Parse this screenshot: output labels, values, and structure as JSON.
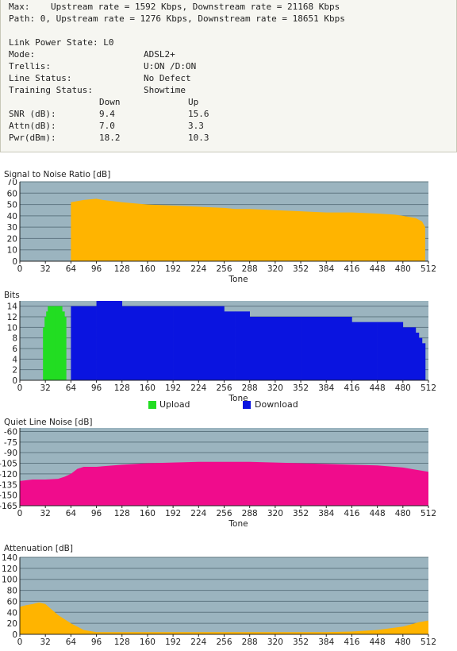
{
  "stats": {
    "max_line": "Max:    Upstream rate = 1592 Kbps, Downstream rate = 21168 Kbps",
    "path_line": "Path: 0, Upstream rate = 1276 Kbps, Downstream rate = 18651 Kbps",
    "link_power_state": "Link Power State: L0",
    "rows": [
      {
        "label": "Mode:",
        "value": "ADSL2+"
      },
      {
        "label": "Trellis:",
        "value": "U:ON /D:ON"
      },
      {
        "label": "Line Status:",
        "value": "No Defect"
      },
      {
        "label": "Training Status:",
        "value": "Showtime"
      }
    ],
    "col_down": "Down",
    "col_up": "Up",
    "metrics": [
      {
        "label": "SNR (dB):",
        "down": "9.4",
        "up": "15.6"
      },
      {
        "label": "Attn(dB):",
        "down": "7.0",
        "up": "3.3"
      },
      {
        "label": "Pwr(dBm):",
        "down": "18.2",
        "up": "10.3"
      }
    ]
  },
  "colors": {
    "plot_bg": "#9bb4bf",
    "snr": "#ffb400",
    "upload": "#22dd22",
    "download": "#0a14e0",
    "noise": "#f00c8c",
    "attn": "#ffb400"
  },
  "chart_data": [
    {
      "type": "area",
      "title": "Signal to Noise Ratio [dB]",
      "xlabel": "Tone",
      "xlim": [
        0,
        512
      ],
      "ylim": [
        0,
        70
      ],
      "xticks": [
        0,
        32,
        64,
        96,
        128,
        160,
        192,
        224,
        256,
        288,
        320,
        352,
        384,
        416,
        448,
        480,
        512
      ],
      "yticks": [
        0,
        10,
        20,
        30,
        40,
        50,
        60,
        70
      ],
      "series": [
        {
          "x": [
            64,
            64,
            80,
            96,
            104,
            128,
            160,
            192,
            224,
            256,
            270,
            288,
            320,
            352,
            384,
            416,
            448,
            470,
            480,
            496,
            504,
            508
          ],
          "y": [
            0,
            52,
            54,
            55,
            54,
            52,
            50,
            49,
            48,
            47,
            46,
            46,
            45,
            44,
            43,
            43,
            42,
            41,
            40,
            38,
            35,
            30
          ]
        }
      ]
    },
    {
      "type": "bar",
      "title": "Bits",
      "xlabel": "Tone",
      "xlim": [
        0,
        512
      ],
      "ylim": [
        0,
        15
      ],
      "xticks": [
        0,
        32,
        64,
        96,
        128,
        160,
        192,
        224,
        256,
        288,
        320,
        352,
        384,
        416,
        448,
        480,
        512
      ],
      "yticks": [
        0,
        2,
        4,
        6,
        8,
        10,
        12,
        14
      ],
      "legend": "bottom",
      "series": [
        {
          "name": "Upload",
          "x": [
            29,
            31,
            33,
            35,
            38,
            44,
            50,
            53,
            56,
            58
          ],
          "y": [
            10,
            12,
            13,
            14,
            14,
            14,
            14,
            13,
            12,
            0
          ]
        },
        {
          "name": "Download",
          "x": [
            64,
            96,
            128,
            160,
            192,
            224,
            256,
            270,
            288,
            320,
            352,
            384,
            416,
            448,
            464,
            480,
            488,
            496,
            500,
            504,
            508
          ],
          "y": [
            14,
            15,
            14,
            14,
            14,
            14,
            13,
            13,
            12,
            12,
            12,
            12,
            11,
            11,
            11,
            10,
            10,
            9,
            8,
            7,
            6
          ]
        }
      ]
    },
    {
      "type": "area",
      "title": "Quiet Line Noise [dB]",
      "xlabel": "Tone",
      "xlim": [
        0,
        512
      ],
      "ylim": [
        -165,
        -55
      ],
      "xticks": [
        0,
        32,
        64,
        96,
        128,
        160,
        192,
        224,
        256,
        288,
        320,
        352,
        384,
        416,
        448,
        480,
        512
      ],
      "yticks": [
        -60,
        -75,
        -90,
        -105,
        -120,
        -135,
        -150,
        -165
      ],
      "series": [
        {
          "x": [
            0,
            16,
            32,
            48,
            56,
            64,
            72,
            80,
            96,
            128,
            160,
            192,
            224,
            256,
            288,
            320,
            352,
            384,
            416,
            448,
            480,
            496,
            512
          ],
          "y": [
            -130,
            -128,
            -128,
            -127,
            -124,
            -120,
            -113,
            -110,
            -110,
            -107,
            -105,
            -104,
            -103,
            -103,
            -103,
            -104,
            -105,
            -106,
            -107,
            -108,
            -111,
            -114,
            -117
          ]
        }
      ]
    },
    {
      "type": "area",
      "title": "Attenuation [dB]",
      "xlabel": "Tone",
      "xlim": [
        0,
        512
      ],
      "ylim": [
        0,
        140
      ],
      "xticks": [
        0,
        32,
        64,
        96,
        128,
        160,
        192,
        224,
        256,
        288,
        320,
        352,
        384,
        416,
        448,
        480,
        512
      ],
      "yticks": [
        0,
        20,
        40,
        60,
        80,
        100,
        120,
        140
      ],
      "series": [
        {
          "x": [
            0,
            8,
            16,
            24,
            32,
            40,
            48,
            64,
            80,
            96,
            128,
            192,
            256,
            320,
            384,
            416,
            448,
            480,
            500,
            512
          ],
          "y": [
            50,
            53,
            55,
            58,
            55,
            45,
            35,
            20,
            8,
            4,
            4,
            4,
            4,
            4,
            4,
            5,
            8,
            14,
            22,
            25
          ]
        }
      ]
    }
  ]
}
